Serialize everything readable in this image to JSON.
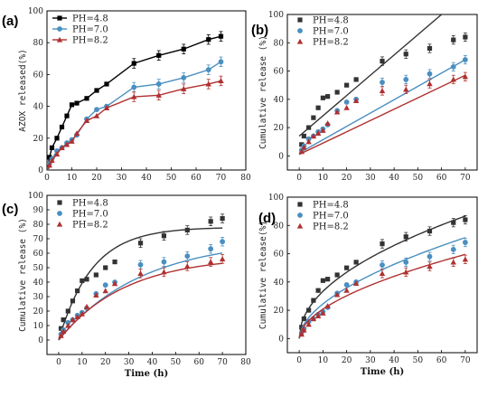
{
  "chart_data": [
    {
      "panel_label": "(a)",
      "type": "line",
      "ylabel": "AZOX released(%)",
      "xlabel": "",
      "xlim": [
        0,
        80
      ],
      "ylim": [
        0,
        100
      ],
      "xticks": [
        "0",
        "10",
        "20",
        "30",
        "40",
        "50",
        "60",
        "70",
        "80"
      ],
      "yticks": [
        "0",
        "20",
        "40",
        "60",
        "80",
        "100"
      ],
      "legend_position": "top-left",
      "x": [
        0,
        1,
        2,
        4,
        6,
        8,
        10,
        12,
        16,
        20,
        24,
        35,
        45,
        55,
        65,
        70
      ],
      "series": [
        {
          "name": "PH=4.8",
          "color": "#000000",
          "marker": "square",
          "values": [
            0,
            8,
            14,
            20,
            27,
            34,
            41,
            42,
            45,
            50,
            54,
            67,
            72,
            76,
            82,
            84
          ]
        },
        {
          "name": "PH=7.0",
          "color": "#4a8fc0",
          "marker": "circle",
          "values": [
            0,
            4,
            7,
            12,
            14,
            17,
            19,
            22,
            32,
            38,
            40,
            52,
            54,
            58,
            63,
            68
          ]
        },
        {
          "name": "PH=8.2",
          "color": "#b03030",
          "marker": "triangle",
          "values": [
            0,
            3,
            6,
            10,
            14,
            16,
            18,
            23,
            31,
            34,
            39,
            46,
            47,
            51,
            54,
            56
          ]
        }
      ]
    },
    {
      "panel_label": "(b)",
      "type": "scatter",
      "ylabel": "Cumulative release (%)",
      "xlabel": "",
      "xlim": [
        -5,
        75
      ],
      "ylim": [
        -10,
        100
      ],
      "xticks": [
        "0",
        "10",
        "20",
        "30",
        "40",
        "50",
        "60",
        "70"
      ],
      "yticks": [
        "0",
        "20",
        "40",
        "60",
        "80",
        "100"
      ],
      "legend_position": "top-left",
      "fit": "linear",
      "x": [
        1,
        2,
        4,
        6,
        8,
        10,
        12,
        16,
        20,
        24,
        35,
        45,
        55,
        65,
        70
      ],
      "series": [
        {
          "name": "PH=4.8",
          "color": "#333333",
          "marker": "square",
          "values": [
            8,
            14,
            20,
            27,
            34,
            41,
            42,
            45,
            50,
            54,
            67,
            72,
            76,
            82,
            84
          ],
          "fit_line": [
            [
              0,
              14
            ],
            [
              60,
              100
            ]
          ]
        },
        {
          "name": "PH=7.0",
          "color": "#4a8fc0",
          "marker": "circle",
          "values": [
            4,
            7,
            12,
            14,
            17,
            19,
            22,
            32,
            38,
            40,
            52,
            54,
            58,
            63,
            68
          ],
          "fit_line": [
            [
              0,
              2
            ],
            [
              70,
              68
            ]
          ]
        },
        {
          "name": "PH=8.2",
          "color": "#b03030",
          "marker": "triangle",
          "values": [
            3,
            6,
            10,
            14,
            16,
            18,
            23,
            31,
            34,
            39,
            46,
            47,
            51,
            54,
            56
          ],
          "fit_line": [
            [
              0,
              1
            ],
            [
              70,
              57
            ]
          ]
        }
      ]
    },
    {
      "panel_label": "(c)",
      "type": "scatter",
      "ylabel": "Cumulative release (%)",
      "xlabel": "Time (h)",
      "xlim": [
        -5,
        80
      ],
      "ylim": [
        -10,
        100
      ],
      "xticks": [
        "0",
        "10",
        "20",
        "30",
        "40",
        "50",
        "60",
        "70",
        "80"
      ],
      "yticks": [
        "0",
        "10",
        "20",
        "30",
        "40",
        "50",
        "60",
        "70",
        "80",
        "90",
        "100"
      ],
      "legend_position": "top-left",
      "fit": "first-order",
      "fit_params": [
        [
          78,
          0.07
        ],
        [
          70,
          0.028
        ],
        [
          58,
          0.035
        ]
      ],
      "x": [
        1,
        2,
        4,
        6,
        8,
        10,
        12,
        16,
        20,
        24,
        35,
        45,
        55,
        65,
        70
      ],
      "series": [
        {
          "name": "PH=4.8",
          "color": "#333333",
          "marker": "square",
          "values": [
            8,
            14,
            20,
            27,
            34,
            41,
            42,
            45,
            50,
            54,
            67,
            72,
            76,
            82,
            84
          ]
        },
        {
          "name": "PH=7.0",
          "color": "#4a8fc0",
          "marker": "circle",
          "values": [
            4,
            7,
            12,
            14,
            17,
            19,
            22,
            32,
            38,
            40,
            52,
            54,
            58,
            63,
            68
          ]
        },
        {
          "name": "PH=8.2",
          "color": "#b03030",
          "marker": "triangle",
          "values": [
            3,
            6,
            10,
            14,
            16,
            18,
            23,
            31,
            34,
            39,
            46,
            47,
            51,
            54,
            56
          ]
        }
      ]
    },
    {
      "panel_label": "(d)",
      "type": "scatter",
      "ylabel": "Cumulative release(%)",
      "xlabel": "Time (h)",
      "xlim": [
        -5,
        75
      ],
      "ylim": [
        -10,
        100
      ],
      "xticks": [
        "0",
        "10",
        "20",
        "30",
        "40",
        "50",
        "60",
        "70"
      ],
      "yticks": [
        "0",
        "20",
        "40",
        "60",
        "80",
        "100"
      ],
      "legend_position": "top-left",
      "fit": "power",
      "fit_params": [
        [
          10.8,
          0.49
        ],
        [
          6.9,
          0.55
        ],
        [
          6.0,
          0.54
        ]
      ],
      "x": [
        1,
        2,
        4,
        6,
        8,
        10,
        12,
        16,
        20,
        24,
        35,
        45,
        55,
        65,
        70
      ],
      "series": [
        {
          "name": "PH=4.8",
          "color": "#333333",
          "marker": "square",
          "values": [
            8,
            14,
            20,
            27,
            34,
            41,
            42,
            45,
            50,
            54,
            67,
            72,
            76,
            82,
            84
          ]
        },
        {
          "name": "PH=7.0",
          "color": "#4a8fc0",
          "marker": "circle",
          "values": [
            4,
            7,
            12,
            14,
            17,
            19,
            22,
            32,
            38,
            40,
            52,
            54,
            58,
            63,
            68
          ]
        },
        {
          "name": "PH=8.2",
          "color": "#b03030",
          "marker": "triangle",
          "values": [
            3,
            6,
            10,
            14,
            16,
            18,
            23,
            31,
            34,
            39,
            46,
            47,
            51,
            54,
            56
          ]
        }
      ]
    }
  ]
}
